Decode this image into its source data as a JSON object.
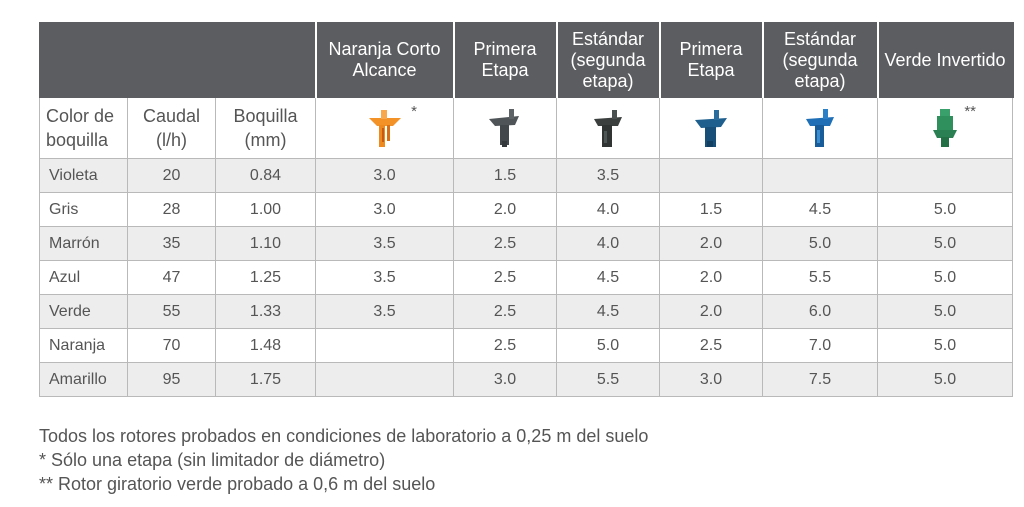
{
  "table": {
    "headers": [
      "Naranja Corto Alcance",
      "Primera Etapa",
      "Estándar (segunda etapa)",
      "Primera Etapa",
      "Estándar (segunda etapa)",
      "Verde Invertido"
    ],
    "col_color": "Color de boquilla",
    "col_caudal": "Caudal (l/h)",
    "col_boquilla": "Boquilla (mm)",
    "marks": {
      "naranja": "*",
      "verde": "**"
    },
    "nozzle_icons": [
      {
        "name": "orange-nozzle-icon",
        "color": "#f39226"
      },
      {
        "name": "gray-nozzle-icon",
        "color": "#4f5458"
      },
      {
        "name": "dark-gray-nozzle-icon",
        "color": "#3b403f"
      },
      {
        "name": "blue-nozzle-icon",
        "color": "#1f5f8e"
      },
      {
        "name": "bright-blue-nozzle-icon",
        "color": "#1e6fb6"
      },
      {
        "name": "green-nozzle-icon",
        "color": "#2f8f5d"
      }
    ],
    "rows": [
      {
        "color": "Violeta",
        "caudal": "20",
        "boquilla": "0.84",
        "v1": "3.0",
        "v2": "1.5",
        "v3": "3.5",
        "v4": "",
        "v5": "",
        "v6": ""
      },
      {
        "color": "Gris",
        "caudal": "28",
        "boquilla": "1.00",
        "v1": "3.0",
        "v2": "2.0",
        "v3": "4.0",
        "v4": "1.5",
        "v5": "4.5",
        "v6": "5.0"
      },
      {
        "color": "Marrón",
        "caudal": "35",
        "boquilla": "1.10",
        "v1": "3.5",
        "v2": "2.5",
        "v3": "4.0",
        "v4": "2.0",
        "v5": "5.0",
        "v6": "5.0"
      },
      {
        "color": "Azul",
        "caudal": "47",
        "boquilla": "1.25",
        "v1": "3.5",
        "v2": "2.5",
        "v3": "4.5",
        "v4": "2.0",
        "v5": "5.5",
        "v6": "5.0"
      },
      {
        "color": "Verde",
        "caudal": "55",
        "boquilla": "1.33",
        "v1": "3.5",
        "v2": "2.5",
        "v3": "4.5",
        "v4": "2.0",
        "v5": "6.0",
        "v6": "5.0"
      },
      {
        "color": "Naranja",
        "caudal": "70",
        "boquilla": "1.48",
        "v1": "",
        "v2": "2.5",
        "v3": "5.0",
        "v4": "2.5",
        "v5": "7.0",
        "v6": "5.0"
      },
      {
        "color": "Amarillo",
        "caudal": "95",
        "boquilla": "1.75",
        "v1": "",
        "v2": "3.0",
        "v3": "5.5",
        "v4": "3.0",
        "v5": "7.5",
        "v6": "5.0"
      }
    ]
  },
  "notes": [
    "Todos los rotores probados en condiciones de laboratorio a 0,25 m del suelo",
    "* Sólo una etapa (sin limitador de diámetro)",
    "** Rotor giratorio verde probado a 0,6 m del suelo"
  ]
}
